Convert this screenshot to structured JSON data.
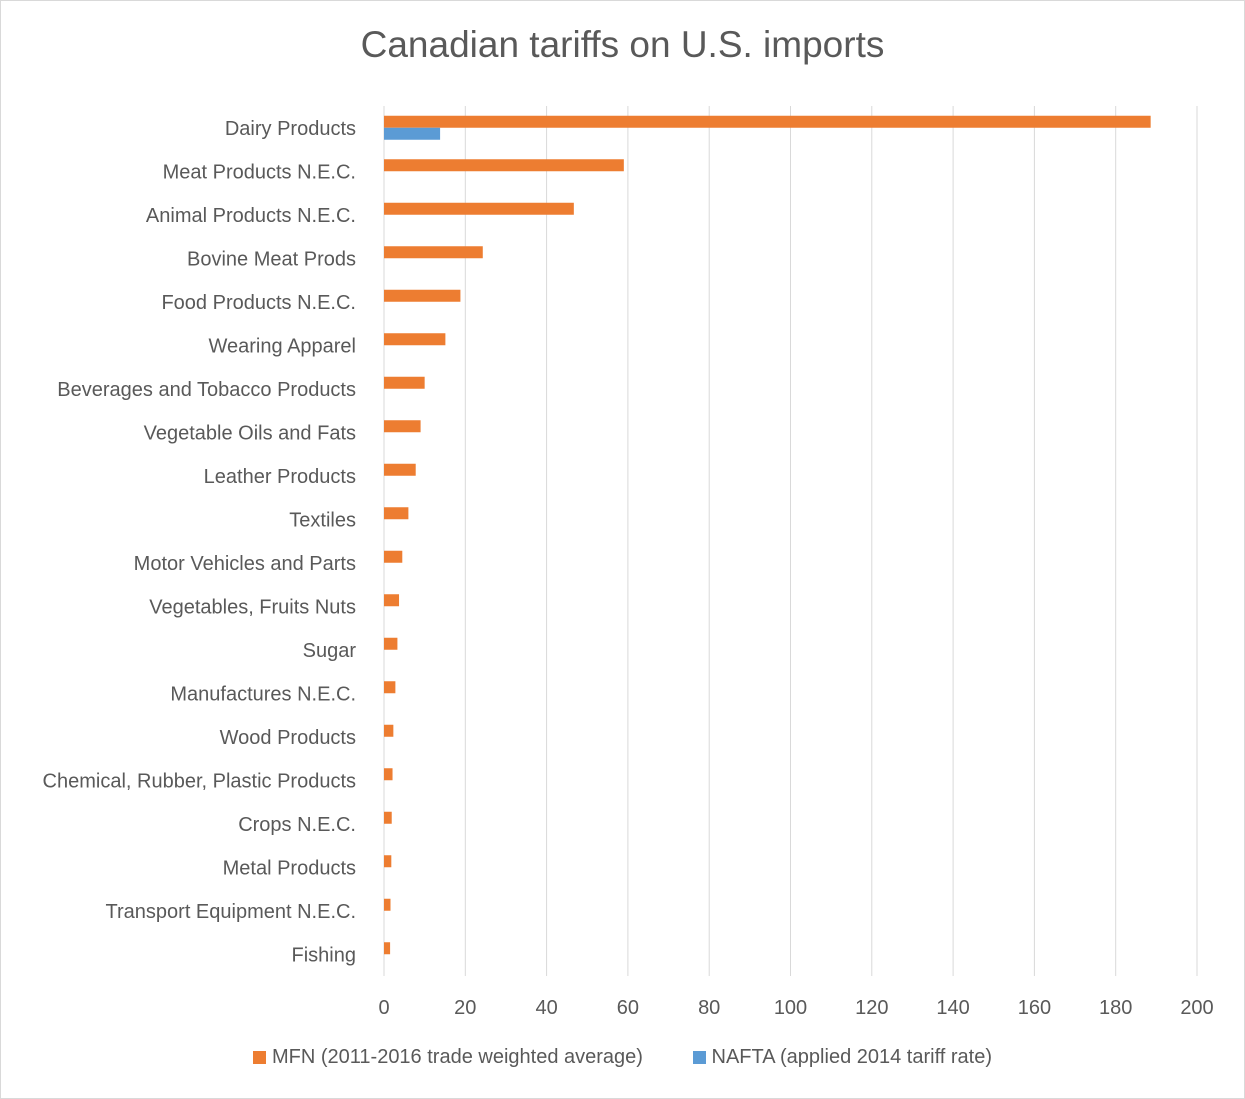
{
  "chart_data": {
    "type": "bar",
    "orientation": "horizontal",
    "title": "Canadian tariffs on U.S. imports",
    "categories": [
      "Dairy Products",
      "Meat Products N.E.C.",
      "Animal Products N.E.C.",
      "Bovine Meat Prods",
      "Food Products N.E.C.",
      "Wearing Apparel",
      "Beverages and Tobacco Products",
      "Vegetable Oils and Fats",
      "Leather Products",
      "Textiles",
      "Motor Vehicles and Parts",
      "Vegetables, Fruits Nuts",
      "Sugar",
      "Manufactures N.E.C.",
      "Wood Products",
      "Chemical, Rubber, Plastic Products",
      "Crops N.E.C.",
      "Metal Products",
      "Transport Equipment N.E.C.",
      "Fishing"
    ],
    "series": [
      {
        "name": "MFN (2011-2016 trade weighted average)",
        "color": "#ed7d31",
        "values": [
          188.6,
          59.0,
          46.7,
          24.3,
          18.8,
          15.1,
          10.0,
          9.0,
          7.8,
          6.0,
          4.5,
          3.7,
          3.3,
          2.8,
          2.3,
          2.1,
          1.9,
          1.8,
          1.6,
          1.5
        ]
      },
      {
        "name": "NAFTA (applied 2014 tariff rate)",
        "color": "#5b9bd5",
        "values": [
          13.8,
          0,
          0,
          0,
          0,
          0,
          0,
          0,
          0,
          0,
          0,
          0,
          0,
          0,
          0,
          0,
          0,
          0,
          0,
          0
        ]
      }
    ],
    "xlim": [
      0,
      200
    ],
    "xticks": [
      0,
      20,
      40,
      60,
      80,
      100,
      120,
      140,
      160,
      180,
      200
    ],
    "grid": true,
    "legend_position": "bottom"
  }
}
